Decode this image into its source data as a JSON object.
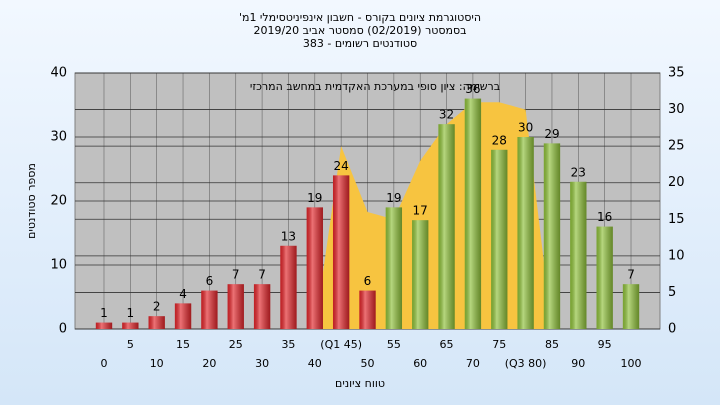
{
  "chart_data": {
    "type": "bar",
    "title": "היסטוגרמת ציונים בקורס - חשבון אינפיניטסימלי 1מ'",
    "subtitle": "בסמסטר  (02/2019)  סמסטר אביב 2019/20",
    "subtitle2": "סטודנטים רשומים - 383",
    "annotation": "ברשימה: ציון סופי במערכת האקדמית במחשב המרכזי",
    "x_label": "טווח ציונים",
    "y_label": "מספר סטודנטים",
    "categories": [
      "0",
      "5",
      "10",
      "15",
      "20",
      "25",
      "30",
      "35",
      "40",
      "(Q1 45)",
      "50",
      "55",
      "60",
      "65",
      "70",
      "75",
      "(Q3 80)",
      "85",
      "90",
      "95",
      "100"
    ],
    "values": [
      1,
      1,
      2,
      4,
      6,
      7,
      7,
      13,
      19,
      24,
      6,
      19,
      17,
      32,
      36,
      28,
      30,
      29,
      23,
      16,
      7
    ],
    "colors": [
      "#e3262b",
      "#e3262b",
      "#e3262b",
      "#e3262b",
      "#e3262b",
      "#e3262b",
      "#e3262b",
      "#e3262b",
      "#e3262b",
      "#e3262b",
      "#e3262b",
      "#8fc13a",
      "#8fc13a",
      "#8fc13a",
      "#8fc13a",
      "#8fc13a",
      "#8fc13a",
      "#8fc13a",
      "#8fc13a",
      "#8fc13a",
      "#8fc13a"
    ],
    "area": {
      "axis": "y2",
      "color": "#f7c440",
      "values": [
        null,
        null,
        null,
        null,
        null,
        null,
        null,
        null,
        0,
        25,
        16,
        15,
        23,
        28,
        31,
        31,
        30,
        0,
        null,
        null,
        null
      ]
    },
    "ylim": [
      0,
      40
    ],
    "yticks": [
      0,
      10,
      20,
      30,
      40
    ],
    "y2lim": [
      0,
      35
    ],
    "y2ticks": [
      0,
      5,
      10,
      15,
      20,
      25,
      30,
      35
    ],
    "grid": true
  }
}
